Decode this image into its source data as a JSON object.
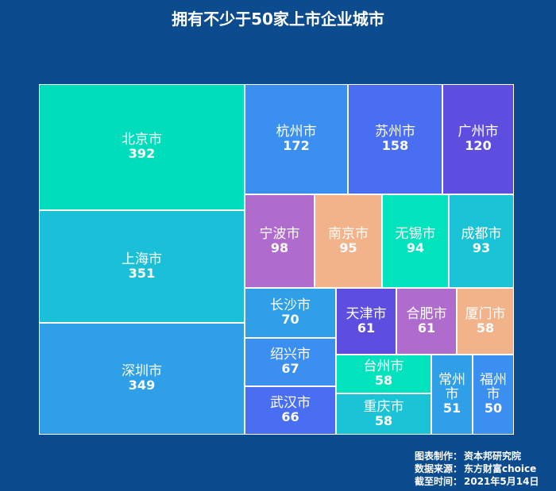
{
  "page": {
    "title": "拥有不少于50家上市企业城市"
  },
  "chart_data": {
    "type": "treemap",
    "title": "拥有不少于50家上市企业城市",
    "items": [
      {
        "name": "北京市",
        "value": 392,
        "color": "#00ddbc"
      },
      {
        "name": "上海市",
        "value": 351,
        "color": "#1bbfd8"
      },
      {
        "name": "深圳市",
        "value": 349,
        "color": "#2f9fe7"
      },
      {
        "name": "杭州市",
        "value": 172,
        "color": "#3a8ff0"
      },
      {
        "name": "苏州市",
        "value": 158,
        "color": "#4a6ef2"
      },
      {
        "name": "广州市",
        "value": 120,
        "color": "#5e4ee0"
      },
      {
        "name": "宁波市",
        "value": 98,
        "color": "#b06ccc"
      },
      {
        "name": "南京市",
        "value": 95,
        "color": "#f2b28a"
      },
      {
        "name": "无锡市",
        "value": 94,
        "color": "#00e3bc"
      },
      {
        "name": "成都市",
        "value": 93,
        "color": "#1bc3d6"
      },
      {
        "name": "长沙市",
        "value": 70,
        "color": "#2f9fe7"
      },
      {
        "name": "天津市",
        "value": 61,
        "color": "#5e4ee0"
      },
      {
        "name": "合肥市",
        "value": 61,
        "color": "#b06ccc"
      },
      {
        "name": "厦门市",
        "value": 58,
        "color": "#f2b28a"
      },
      {
        "name": "绍兴市",
        "value": 67,
        "color": "#3a8ff0"
      },
      {
        "name": "台州市",
        "value": 58,
        "color": "#00e3bc"
      },
      {
        "name": "常州市",
        "value": 51,
        "color": "#2f9fe7"
      },
      {
        "name": "福州市",
        "value": 50,
        "color": "#3a8ff0"
      },
      {
        "name": "武汉市",
        "value": 66,
        "color": "#4a6ef2"
      },
      {
        "name": "重庆市",
        "value": 58,
        "color": "#1bc3d6"
      }
    ]
  },
  "footer": {
    "rows": [
      {
        "label": "图表制作：",
        "value": "资本邦研究院"
      },
      {
        "label": "数据来源：",
        "value": "东方财富choice"
      },
      {
        "label": "截至时间：",
        "value": "2021年5月14日"
      }
    ]
  }
}
